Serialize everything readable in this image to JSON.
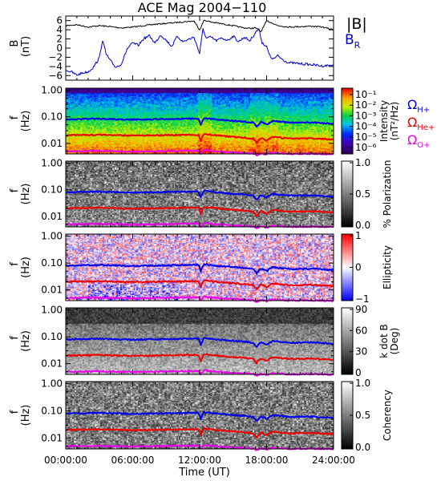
{
  "chart_data": {
    "type": "spectrogram",
    "title": "ACE Mag 2004−110",
    "x_axis": {
      "label": "Time (UT)",
      "range_hours": [
        0,
        24
      ],
      "tick_labels": [
        "00:00:00",
        "06:00:00",
        "12:00:00",
        "18:00:00",
        "24:00:00"
      ]
    },
    "freq_axis": {
      "label_line1": "f",
      "label_line2": "(Hz)",
      "scale": "log",
      "range": [
        0.004,
        1.2
      ],
      "tick_labels": [
        "1.00",
        "0.10",
        "0.01"
      ]
    },
    "panels": [
      {
        "id": "field",
        "type": "line",
        "ylabel_line1": "B",
        "ylabel_line2": "(nT)",
        "ylim": [
          -7,
          7
        ],
        "tick_labels": [
          "6",
          "4",
          "2",
          "0",
          "−2",
          "−4",
          "−6"
        ],
        "series": [
          {
            "name": "|B|",
            "color": "#000000",
            "points": [
              [
                0,
                4.9
              ],
              [
                1,
                5.1
              ],
              [
                2,
                4.6
              ],
              [
                3,
                4.9
              ],
              [
                4,
                4.7
              ],
              [
                5,
                4.4
              ],
              [
                6,
                4.6
              ],
              [
                7,
                4.9
              ],
              [
                8,
                5.2
              ],
              [
                9,
                5.4
              ],
              [
                10,
                5.6
              ],
              [
                10.8,
                5.8
              ],
              [
                11.5,
                5.9
              ],
              [
                12.0,
                4.0
              ],
              [
                12.4,
                6.1
              ],
              [
                13.0,
                5.7
              ],
              [
                14.0,
                5.3
              ],
              [
                15,
                4.9
              ],
              [
                16,
                4.4
              ],
              [
                16.5,
                4.3
              ],
              [
                17.0,
                4.4
              ],
              [
                17.5,
                3.6
              ],
              [
                18.0,
                5.9
              ],
              [
                18.5,
                5.5
              ],
              [
                19,
                4.9
              ],
              [
                20,
                4.6
              ],
              [
                21,
                4.7
              ],
              [
                22,
                4.8
              ],
              [
                23,
                4.6
              ],
              [
                24,
                4.0
              ]
            ]
          },
          {
            "name": "B_R",
            "color": "#0000cc",
            "points": [
              [
                0,
                -4.8
              ],
              [
                0.5,
                -5.2
              ],
              [
                1,
                -5.9
              ],
              [
                1.5,
                -5.4
              ],
              [
                2,
                -5.2
              ],
              [
                2.5,
                -4.1
              ],
              [
                3,
                -2.2
              ],
              [
                3.3,
                1.8
              ],
              [
                3.6,
                -1.2
              ],
              [
                4,
                -2.8
              ],
              [
                4.5,
                -4.2
              ],
              [
                5,
                -3.4
              ],
              [
                5.5,
                -0.2
              ],
              [
                6,
                1.1
              ],
              [
                6.5,
                0.6
              ],
              [
                7,
                2.1
              ],
              [
                7.5,
                2.7
              ],
              [
                8,
                1.1
              ],
              [
                8.5,
                2.9
              ],
              [
                9,
                1.7
              ],
              [
                9.5,
                0.4
              ],
              [
                10,
                2.6
              ],
              [
                10.5,
                1.4
              ],
              [
                11,
                1.9
              ],
              [
                11.5,
                2.4
              ],
              [
                12,
                -1.2
              ],
              [
                12.3,
                4.2
              ],
              [
                12.6,
                2.1
              ],
              [
                13,
                2.4
              ],
              [
                13.5,
                1.6
              ],
              [
                14,
                2.2
              ],
              [
                14.5,
                1.7
              ],
              [
                15,
                2.6
              ],
              [
                15.5,
                1.4
              ],
              [
                16,
                2.4
              ],
              [
                16.5,
                1.6
              ],
              [
                17,
                3.4
              ],
              [
                17.3,
                4.2
              ],
              [
                17.6,
                1.2
              ],
              [
                18,
                0.3
              ],
              [
                18.3,
                -1.8
              ],
              [
                18.6,
                -2.4
              ],
              [
                19,
                -1.7
              ],
              [
                19.5,
                -2.6
              ],
              [
                20,
                -3.2
              ],
              [
                21,
                -3.4
              ],
              [
                22,
                -3.6
              ],
              [
                23,
                -3.9
              ],
              [
                24,
                -3.7
              ]
            ]
          }
        ],
        "legend": [
          {
            "label": "|B|",
            "color": "#000000"
          },
          {
            "label_main": "B",
            "label_sub": "R",
            "color": "#0000cc"
          }
        ]
      },
      {
        "id": "intensity",
        "type": "heatmap",
        "colormap": "rainbow",
        "colorbar_label_line1": "Intensity",
        "colorbar_label_line2": "(nT²/Hz)",
        "colorbar_ticks": [
          "10⁻¹",
          "10⁻²",
          "10⁻³",
          "10⁻⁴",
          "10⁻⁵",
          "10⁻⁶"
        ],
        "legend": [
          {
            "label_main": "Ω",
            "label_sub": "H+",
            "color": "#0000ee"
          },
          {
            "label_main": "Ω",
            "label_sub": "He+",
            "color": "#ee0000"
          },
          {
            "label_main": "Ω",
            "label_sub": "O+",
            "color": "#ee00ee"
          }
        ]
      },
      {
        "id": "polarization",
        "type": "heatmap",
        "colormap": "gray",
        "colorbar_label_line1": "% Polarization",
        "colorbar_label_line2": "",
        "colorbar_ticks": [
          "1.0",
          "0.5",
          "0.0"
        ]
      },
      {
        "id": "ellipticity",
        "type": "heatmap",
        "colormap": "bwr",
        "colorbar_label_line1": "Ellipticity",
        "colorbar_label_line2": "",
        "colorbar_ticks": [
          "1",
          "0",
          "−1"
        ]
      },
      {
        "id": "kdotb",
        "type": "heatmap",
        "colormap": "gray",
        "colorbar_label_line1": "k dot B",
        "colorbar_label_line2": "(Deg)",
        "colorbar_ticks": [
          "90",
          "60",
          "30",
          "0"
        ]
      },
      {
        "id": "coherency",
        "type": "heatmap",
        "colormap": "gray",
        "colorbar_label_line1": "Coherency",
        "colorbar_label_line2": "",
        "colorbar_ticks": [
          "1.0",
          "0.5",
          "0.0"
        ]
      }
    ],
    "gyro_lines": [
      {
        "name": "ΩH+",
        "color": "#0000ee",
        "points": [
          [
            0,
            0.08
          ],
          [
            3,
            0.085
          ],
          [
            6,
            0.078
          ],
          [
            9,
            0.082
          ],
          [
            11,
            0.085
          ],
          [
            11.9,
            0.085
          ],
          [
            12.1,
            0.05
          ],
          [
            12.4,
            0.09
          ],
          [
            14,
            0.076
          ],
          [
            16,
            0.066
          ],
          [
            16.8,
            0.06
          ],
          [
            17.1,
            0.042
          ],
          [
            17.5,
            0.063
          ],
          [
            18.0,
            0.05
          ],
          [
            18.5,
            0.07
          ],
          [
            20,
            0.06
          ],
          [
            22,
            0.062
          ],
          [
            24,
            0.055
          ]
        ]
      },
      {
        "name": "ΩHe+",
        "color": "#ee0000",
        "points": [
          [
            0,
            0.02
          ],
          [
            3,
            0.021
          ],
          [
            6,
            0.0195
          ],
          [
            9,
            0.0205
          ],
          [
            11,
            0.021
          ],
          [
            11.9,
            0.021
          ],
          [
            12.1,
            0.0125
          ],
          [
            12.4,
            0.0225
          ],
          [
            14,
            0.019
          ],
          [
            16,
            0.0165
          ],
          [
            16.8,
            0.015
          ],
          [
            17.1,
            0.0105
          ],
          [
            17.5,
            0.016
          ],
          [
            18.0,
            0.0125
          ],
          [
            18.5,
            0.0175
          ],
          [
            20,
            0.015
          ],
          [
            22,
            0.0155
          ],
          [
            24,
            0.014
          ]
        ]
      },
      {
        "name": "ΩO+",
        "color": "#ee00ee",
        "points": [
          [
            0,
            0.005
          ],
          [
            3,
            0.0052
          ],
          [
            6,
            0.0049
          ],
          [
            9,
            0.0051
          ],
          [
            11,
            0.0053
          ],
          [
            11.9,
            0.0053
          ],
          [
            12.1,
            0.004
          ],
          [
            12.4,
            0.0056
          ],
          [
            14,
            0.0048
          ],
          [
            16,
            0.0044
          ],
          [
            16.8,
            0.0041
          ],
          [
            17.1,
            0.0036
          ],
          [
            17.5,
            0.0042
          ],
          [
            18.0,
            0.0038
          ],
          [
            18.5,
            0.0044
          ],
          [
            20,
            0.004
          ],
          [
            22,
            0.0041
          ],
          [
            24,
            0.0039
          ]
        ]
      }
    ]
  }
}
